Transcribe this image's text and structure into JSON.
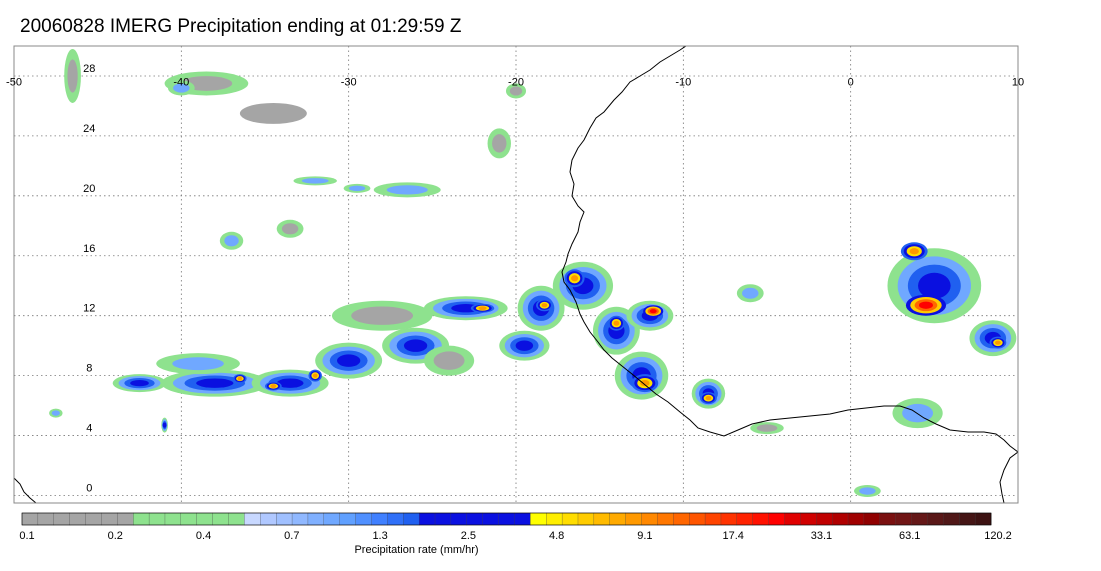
{
  "title": "20060828 IMERG Precipitation ending at 01:29:59 Z",
  "map": {
    "lon_range": [
      -50,
      10
    ],
    "lat_range": [
      -0.5,
      30
    ],
    "lon_ticks": [
      {
        "value": -50,
        "label": "-50"
      },
      {
        "value": -40,
        "label": "-40"
      },
      {
        "value": -30,
        "label": "-30"
      },
      {
        "value": -20,
        "label": "-20"
      },
      {
        "value": -10,
        "label": "-10"
      },
      {
        "value": 0,
        "label": "0"
      },
      {
        "value": 10,
        "label": "10"
      }
    ],
    "lat_ticks": [
      {
        "value": 28,
        "label": "28"
      },
      {
        "value": 24,
        "label": "24"
      },
      {
        "value": 20,
        "label": "20"
      },
      {
        "value": 16,
        "label": "16"
      },
      {
        "value": 12,
        "label": "12"
      },
      {
        "value": 8,
        "label": "8"
      },
      {
        "value": 4,
        "label": "4"
      },
      {
        "value": 0,
        "label": "0"
      }
    ],
    "grid": "dotted",
    "coastline_color": "#000000"
  },
  "colorbar": {
    "title": "Precipitation rate (mm/hr)",
    "colors": [
      "#a5a5a5",
      "#a5a5a5",
      "#a5a5a5",
      "#a5a5a5",
      "#a5a5a5",
      "#a5a5a5",
      "#a5a5a5",
      "#8ee28e",
      "#8ee28e",
      "#8ee28e",
      "#8ee28e",
      "#8ee28e",
      "#8ee28e",
      "#8ee28e",
      "#c8d8ff",
      "#b0c8ff",
      "#a0c0ff",
      "#90b8ff",
      "#80b0ff",
      "#70a8ff",
      "#60a0ff",
      "#5090ff",
      "#4080ff",
      "#3070f8",
      "#2060f0",
      "#0a10e0",
      "#0a10e0",
      "#0a10e0",
      "#0a10e0",
      "#0a10e0",
      "#0a10e0",
      "#0a10e0",
      "#ffff00",
      "#ffee00",
      "#ffdd00",
      "#ffcc00",
      "#ffbb00",
      "#ffaa00",
      "#ff9900",
      "#ff8800",
      "#ff7700",
      "#ff6600",
      "#ff5500",
      "#ff4400",
      "#ff3300",
      "#ff2200",
      "#ff1100",
      "#ff0000",
      "#e00000",
      "#d00000",
      "#c00000",
      "#b00000",
      "#a00000",
      "#900000",
      "#7a1010",
      "#701515",
      "#651818",
      "#5a1818",
      "#501818",
      "#451515",
      "#3d1212"
    ],
    "labels": [
      "0.1",
      "0.2",
      "0.4",
      "0.7",
      "1.3",
      "2.5",
      "4.8",
      "9.1",
      "17.4",
      "33.1",
      "63.1",
      "120.2"
    ]
  },
  "precip_cells": [
    {
      "lon": -46.5,
      "lat": 28.0,
      "rx": 0.5,
      "ry": 1.8,
      "level": "light"
    },
    {
      "lon": -38.5,
      "lat": 27.5,
      "rx": 2.5,
      "ry": 0.8,
      "level": "light"
    },
    {
      "lon": -40.0,
      "lat": 27.2,
      "rx": 0.8,
      "ry": 0.5,
      "level": "moderate"
    },
    {
      "lon": -34.5,
      "lat": 25.5,
      "rx": 2.0,
      "ry": 0.7,
      "level": "drizzle"
    },
    {
      "lon": -20.0,
      "lat": 27.0,
      "rx": 0.6,
      "ry": 0.5,
      "level": "light"
    },
    {
      "lon": -21.0,
      "lat": 23.5,
      "rx": 0.7,
      "ry": 1.0,
      "level": "light"
    },
    {
      "lon": -29.5,
      "lat": 20.5,
      "rx": 0.8,
      "ry": 0.3,
      "level": "moderate"
    },
    {
      "lon": -26.5,
      "lat": 20.4,
      "rx": 2.0,
      "ry": 0.5,
      "level": "moderate"
    },
    {
      "lon": -32.0,
      "lat": 21.0,
      "rx": 1.3,
      "ry": 0.3,
      "level": "moderate"
    },
    {
      "lon": -37.0,
      "lat": 17.0,
      "rx": 0.7,
      "ry": 0.6,
      "level": "moderate"
    },
    {
      "lon": -33.5,
      "lat": 17.8,
      "rx": 0.8,
      "ry": 0.6,
      "level": "light"
    },
    {
      "lon": -42.5,
      "lat": 7.5,
      "rx": 1.6,
      "ry": 0.6,
      "level": "heavy"
    },
    {
      "lon": -38.0,
      "lat": 7.5,
      "rx": 3.2,
      "ry": 0.9,
      "level": "heavy"
    },
    {
      "lon": -33.5,
      "lat": 7.5,
      "rx": 2.3,
      "ry": 0.9,
      "level": "heavy"
    },
    {
      "lon": -30.0,
      "lat": 9.0,
      "rx": 2.0,
      "ry": 1.2,
      "level": "heavy"
    },
    {
      "lon": -36.5,
      "lat": 7.8,
      "rx": 0.4,
      "ry": 0.3,
      "level": "intense"
    },
    {
      "lon": -34.5,
      "lat": 7.3,
      "rx": 0.5,
      "ry": 0.3,
      "level": "intense"
    },
    {
      "lon": -32.0,
      "lat": 8.0,
      "rx": 0.4,
      "ry": 0.4,
      "level": "intense"
    },
    {
      "lon": -39.0,
      "lat": 8.8,
      "rx": 2.5,
      "ry": 0.7,
      "level": "moderate"
    },
    {
      "lon": -26.0,
      "lat": 10.0,
      "rx": 2.0,
      "ry": 1.2,
      "level": "heavy"
    },
    {
      "lon": -28.0,
      "lat": 12.0,
      "rx": 3.0,
      "ry": 1.0,
      "level": "light"
    },
    {
      "lon": -23.0,
      "lat": 12.5,
      "rx": 2.5,
      "ry": 0.8,
      "level": "heavy"
    },
    {
      "lon": -22.0,
      "lat": 12.5,
      "rx": 0.7,
      "ry": 0.3,
      "level": "intense"
    },
    {
      "lon": -24.0,
      "lat": 9.0,
      "rx": 1.5,
      "ry": 1.0,
      "level": "light"
    },
    {
      "lon": -18.5,
      "lat": 12.5,
      "rx": 1.4,
      "ry": 1.5,
      "level": "heavy"
    },
    {
      "lon": -19.5,
      "lat": 10.0,
      "rx": 1.5,
      "ry": 1.0,
      "level": "heavy"
    },
    {
      "lon": -16.0,
      "lat": 14.0,
      "rx": 1.8,
      "ry": 1.6,
      "level": "heavy"
    },
    {
      "lon": -16.5,
      "lat": 14.5,
      "rx": 0.6,
      "ry": 0.6,
      "level": "intense"
    },
    {
      "lon": -18.3,
      "lat": 12.7,
      "rx": 0.5,
      "ry": 0.4,
      "level": "intense"
    },
    {
      "lon": -14.0,
      "lat": 11.0,
      "rx": 1.4,
      "ry": 1.6,
      "level": "heavy"
    },
    {
      "lon": -14.0,
      "lat": 11.5,
      "rx": 0.5,
      "ry": 0.5,
      "level": "intense"
    },
    {
      "lon": -12.0,
      "lat": 12.0,
      "rx": 1.4,
      "ry": 1.0,
      "level": "heavy"
    },
    {
      "lon": -11.8,
      "lat": 12.3,
      "rx": 0.6,
      "ry": 0.4,
      "level": "extreme"
    },
    {
      "lon": -12.5,
      "lat": 8.0,
      "rx": 1.6,
      "ry": 1.6,
      "level": "heavy"
    },
    {
      "lon": -12.3,
      "lat": 7.5,
      "rx": 0.8,
      "ry": 0.6,
      "level": "intense"
    },
    {
      "lon": -8.5,
      "lat": 6.8,
      "rx": 1.0,
      "ry": 1.0,
      "level": "heavy"
    },
    {
      "lon": -8.5,
      "lat": 6.5,
      "rx": 0.5,
      "ry": 0.4,
      "level": "intense"
    },
    {
      "lon": -6.0,
      "lat": 13.5,
      "rx": 0.8,
      "ry": 0.6,
      "level": "moderate"
    },
    {
      "lon": 5.0,
      "lat": 14.0,
      "rx": 2.8,
      "ry": 2.5,
      "level": "heavy"
    },
    {
      "lon": 4.5,
      "lat": 12.7,
      "rx": 1.2,
      "ry": 0.7,
      "level": "extreme"
    },
    {
      "lon": 3.8,
      "lat": 16.3,
      "rx": 0.8,
      "ry": 0.6,
      "level": "intense"
    },
    {
      "lon": 8.5,
      "lat": 10.5,
      "rx": 1.4,
      "ry": 1.2,
      "level": "heavy"
    },
    {
      "lon": 8.8,
      "lat": 10.2,
      "rx": 0.5,
      "ry": 0.4,
      "level": "intense"
    },
    {
      "lon": 4.0,
      "lat": 5.5,
      "rx": 1.5,
      "ry": 1.0,
      "level": "moderate"
    },
    {
      "lon": 1.0,
      "lat": 0.3,
      "rx": 0.8,
      "ry": 0.4,
      "level": "moderate"
    },
    {
      "lon": -47.5,
      "lat": 5.5,
      "rx": 0.4,
      "ry": 0.3,
      "level": "moderate"
    },
    {
      "lon": -41.0,
      "lat": 4.7,
      "rx": 0.2,
      "ry": 0.5,
      "level": "heavy"
    },
    {
      "lon": -5.0,
      "lat": 4.5,
      "rx": 1.0,
      "ry": 0.4,
      "level": "light"
    }
  ]
}
